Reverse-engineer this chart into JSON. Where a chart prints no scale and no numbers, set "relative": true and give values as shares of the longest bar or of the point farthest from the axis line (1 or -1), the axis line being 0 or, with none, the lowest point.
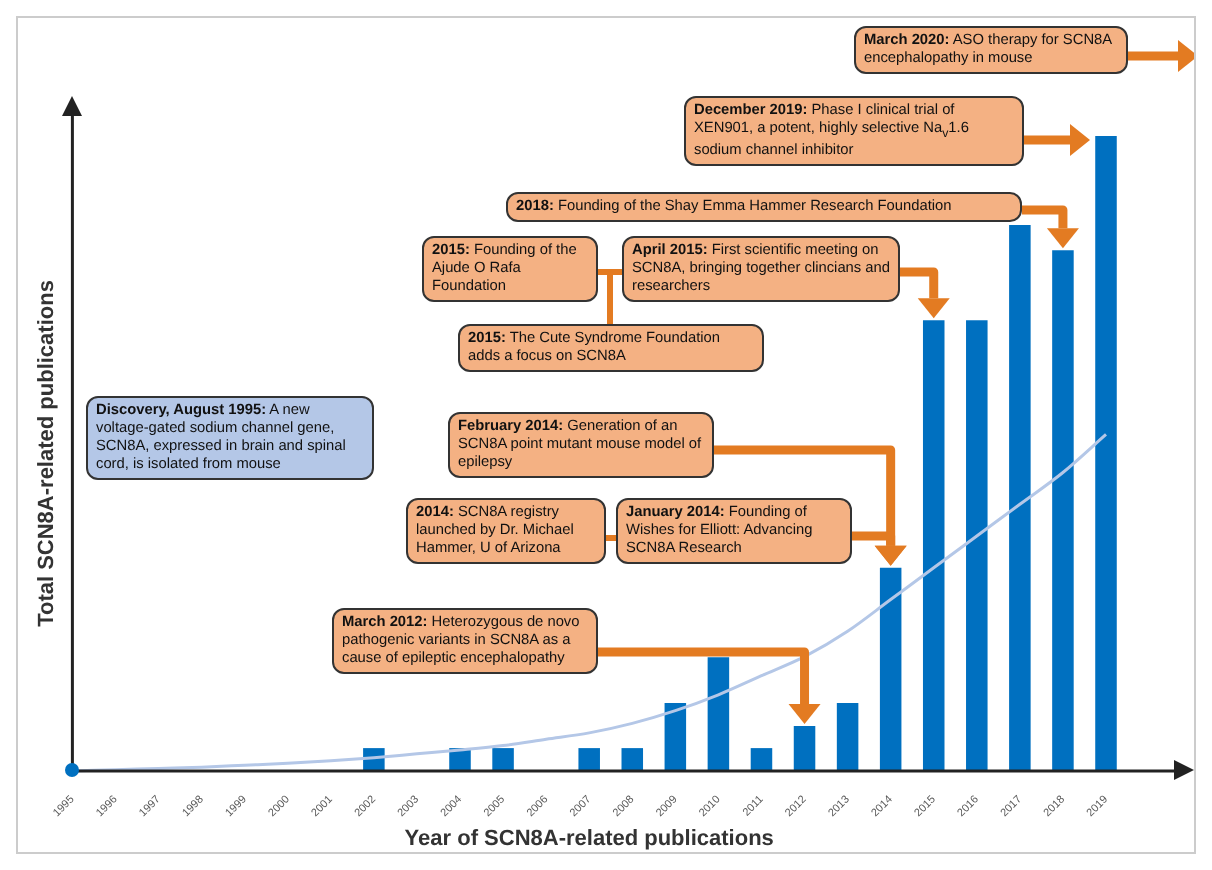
{
  "chart_data": {
    "type": "bar",
    "relative": true,
    "tick_labels": "x",
    "xlabel": "Year of SCN8A-related publications",
    "ylabel": "Total SCN8A-related publications",
    "categories": [
      "1995",
      "1996",
      "1997",
      "1998",
      "1999",
      "2000",
      "2001",
      "2002",
      "2003",
      "2004",
      "2005",
      "2006",
      "2007",
      "2008",
      "2009",
      "2010",
      "2011",
      "2012",
      "2013",
      "2014",
      "2015",
      "2016",
      "2017",
      "2018",
      "2019"
    ],
    "series": [
      {
        "color": "#0070c0",
        "values": [
          0,
          0,
          0,
          0,
          0,
          0,
          0,
          0.036,
          0,
          0.036,
          0.036,
          0,
          0.036,
          0.036,
          0.107,
          0.179,
          0.036,
          0.071,
          0.107,
          0.32,
          0.71,
          0.71,
          0.86,
          0.82,
          1
        ]
      },
      {
        "type": "line",
        "color": "#b4c7e7",
        "marker": "none",
        "line_style": "solid",
        "values": [
          0,
          0.002,
          0.004,
          0.006,
          0.009,
          0.012,
          0.016,
          0.021,
          0.027,
          0.033,
          0.04,
          0.05,
          0.06,
          0.075,
          0.095,
          0.12,
          0.15,
          0.18,
          0.22,
          0.27,
          0.32,
          0.37,
          0.42,
          0.47,
          0.53
        ]
      }
    ],
    "annotations": [
      "Discovery, August 1995: A new voltage-gated sodium channel gene, SCN8A, expressed in brain and spinal cord, is isolated from mouse",
      "March 2012: Heterozygous de novo pathogenic variants in SCN8A as a cause of epileptic encephalopathy",
      "2014: SCN8A registry launched by Dr. Michael Hammer, U of Arizona",
      "January 2014: Founding of Wishes for Elliott: Advancing SCN8A Research",
      "February 2014: Generation of an SCN8A point mutant mouse model of epilepsy",
      "2015: Founding of the Ajude O Rafa Foundation",
      "2015: The Cute Syndrome Foundation adds a focus on SCN8A",
      "April 2015: First scientific meeting on SCN8A, bringing together clincians and researchers",
      "2018: Founding of the Shay Emma Hammer Research Foundation",
      "December 2019: Phase I clinical trial of XEN901, a potent, highly selective Na$_{v}$1.6 sodium channel inhibitor",
      "March 2020: ASO therapy for SCN8A encephalopathy in mouse"
    ]
  }
}
